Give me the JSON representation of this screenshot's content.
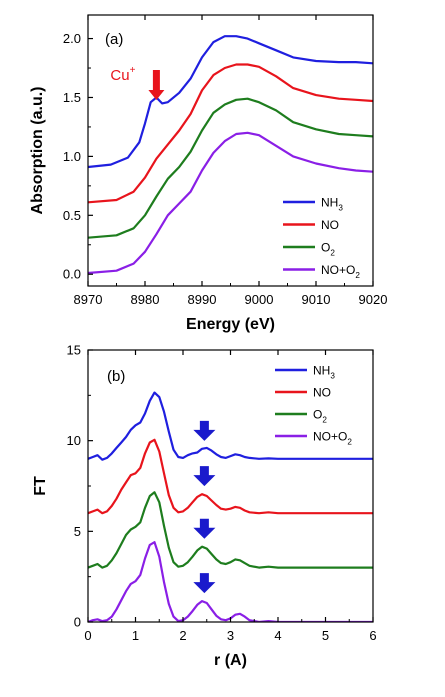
{
  "chart_data": [
    {
      "panel": "(a)",
      "type": "line",
      "xlabel": "Energy (eV)",
      "ylabel": "Absorption (a.u.)",
      "xlim": [
        8970,
        9020
      ],
      "ylim": [
        -0.1,
        2.2
      ],
      "xticks": [
        8970,
        8980,
        8990,
        9000,
        9010,
        9020
      ],
      "yticks": [
        0.0,
        0.5,
        1.0,
        1.5,
        2.0
      ],
      "ytick_labels": [
        "0.0",
        "0.5",
        "1.0",
        "1.5",
        "2.0"
      ],
      "legend_position": "bottom-right",
      "annotation": {
        "text": "Cu",
        "sup": "+",
        "x": 8982,
        "color": "#e8141c"
      },
      "series": [
        {
          "name": "NH",
          "sub": "3",
          "color": "#1f1fdf",
          "x": [
            8970,
            8974,
            8977,
            8979,
            8980,
            8981,
            8982,
            8983,
            8984,
            8986,
            8988,
            8990,
            8992,
            8994,
            8996,
            8998,
            9000,
            9003,
            9006,
            9010,
            9014,
            9017,
            9020
          ],
          "y": [
            0.91,
            0.93,
            0.99,
            1.12,
            1.28,
            1.46,
            1.5,
            1.45,
            1.46,
            1.54,
            1.66,
            1.84,
            1.97,
            2.02,
            2.02,
            2.0,
            1.96,
            1.9,
            1.84,
            1.81,
            1.8,
            1.8,
            1.79
          ]
        },
        {
          "name": "NO",
          "sub": "",
          "color": "#e8141c",
          "x": [
            8970,
            8975,
            8978,
            8980,
            8982,
            8984,
            8986,
            8988,
            8990,
            8992,
            8994,
            8996,
            8998,
            9000,
            9003,
            9006,
            9010,
            9014,
            9017,
            9020
          ],
          "y": [
            0.61,
            0.63,
            0.7,
            0.82,
            0.98,
            1.1,
            1.22,
            1.36,
            1.56,
            1.69,
            1.75,
            1.78,
            1.78,
            1.76,
            1.68,
            1.58,
            1.52,
            1.49,
            1.48,
            1.47
          ]
        },
        {
          "name": "O",
          "sub": "2",
          "color": "#1e7d1e",
          "x": [
            8970,
            8975,
            8978,
            8980,
            8982,
            8984,
            8986,
            8988,
            8990,
            8992,
            8994,
            8996,
            8998,
            9000,
            9003,
            9006,
            9010,
            9014,
            9017,
            9020
          ],
          "y": [
            0.31,
            0.33,
            0.39,
            0.5,
            0.66,
            0.81,
            0.91,
            1.04,
            1.22,
            1.37,
            1.44,
            1.48,
            1.49,
            1.46,
            1.39,
            1.29,
            1.23,
            1.19,
            1.18,
            1.17
          ]
        },
        {
          "name": "NO+O",
          "sub": "2",
          "color": "#8a1fe6",
          "x": [
            8970,
            8975,
            8978,
            8980,
            8982,
            8984,
            8986,
            8988,
            8990,
            8992,
            8994,
            8996,
            8998,
            9000,
            9003,
            9006,
            9010,
            9014,
            9017,
            9020
          ],
          "y": [
            0.01,
            0.03,
            0.09,
            0.19,
            0.34,
            0.5,
            0.6,
            0.7,
            0.88,
            1.03,
            1.13,
            1.19,
            1.2,
            1.18,
            1.09,
            1.0,
            0.94,
            0.9,
            0.88,
            0.87
          ]
        }
      ]
    },
    {
      "panel": "(b)",
      "type": "line",
      "xlabel": "r (A)",
      "ylabel": "FT",
      "xlim": [
        0,
        6
      ],
      "ylim": [
        0,
        15
      ],
      "xticks": [
        0,
        1,
        2,
        3,
        4,
        5,
        6
      ],
      "yticks": [
        0,
        5,
        10,
        15
      ],
      "legend_position": "top-right",
      "arrows_at_x": 2.45,
      "arrow_color": "#1a1acc",
      "series": [
        {
          "name": "NH",
          "sub": "3",
          "color": "#1f1fdf",
          "x": [
            0,
            0.1,
            0.2,
            0.3,
            0.4,
            0.5,
            0.6,
            0.7,
            0.8,
            0.9,
            1.0,
            1.1,
            1.2,
            1.3,
            1.4,
            1.5,
            1.6,
            1.7,
            1.8,
            1.9,
            2.0,
            2.1,
            2.2,
            2.3,
            2.4,
            2.5,
            2.6,
            2.7,
            2.8,
            2.9,
            3.0,
            3.1,
            3.2,
            3.3,
            3.4,
            3.6,
            3.8,
            4.0,
            4.5,
            5.0,
            5.5,
            6.0
          ],
          "y": [
            9.0,
            9.1,
            9.2,
            8.95,
            9.05,
            9.3,
            9.6,
            9.9,
            10.2,
            10.6,
            10.85,
            11.0,
            11.5,
            12.2,
            12.65,
            12.4,
            11.6,
            10.5,
            9.5,
            9.1,
            9.05,
            9.2,
            9.3,
            9.35,
            9.55,
            9.6,
            9.45,
            9.25,
            9.1,
            9.05,
            9.15,
            9.25,
            9.2,
            9.1,
            9.05,
            9.0,
            9.02,
            9.0,
            9.0,
            9.0,
            9.0,
            9.0
          ]
        },
        {
          "name": "NO",
          "sub": "",
          "color": "#e8141c",
          "x": [
            0,
            0.1,
            0.2,
            0.3,
            0.4,
            0.5,
            0.6,
            0.7,
            0.8,
            0.9,
            1.0,
            1.1,
            1.2,
            1.3,
            1.4,
            1.5,
            1.6,
            1.7,
            1.8,
            1.9,
            2.0,
            2.1,
            2.2,
            2.3,
            2.4,
            2.5,
            2.6,
            2.7,
            2.8,
            2.9,
            3.0,
            3.1,
            3.2,
            3.3,
            3.4,
            3.6,
            3.8,
            4.0,
            4.5,
            5.0,
            5.5,
            6.0
          ],
          "y": [
            6.0,
            6.1,
            6.2,
            6.0,
            6.1,
            6.4,
            6.8,
            7.3,
            7.7,
            8.1,
            8.2,
            8.5,
            9.3,
            9.9,
            10.05,
            9.4,
            8.2,
            7.0,
            6.3,
            6.05,
            6.1,
            6.3,
            6.6,
            6.9,
            7.05,
            6.95,
            6.7,
            6.45,
            6.25,
            6.2,
            6.25,
            6.35,
            6.3,
            6.15,
            6.05,
            6.0,
            6.05,
            6.0,
            6.0,
            6.0,
            6.0,
            6.0
          ]
        },
        {
          "name": "O",
          "sub": "2",
          "color": "#1e7d1e",
          "x": [
            0,
            0.1,
            0.2,
            0.3,
            0.4,
            0.5,
            0.6,
            0.7,
            0.8,
            0.9,
            1.0,
            1.1,
            1.2,
            1.3,
            1.4,
            1.5,
            1.6,
            1.7,
            1.8,
            1.9,
            2.0,
            2.1,
            2.2,
            2.3,
            2.4,
            2.5,
            2.6,
            2.7,
            2.8,
            2.9,
            3.0,
            3.1,
            3.2,
            3.3,
            3.4,
            3.6,
            3.8,
            4.0,
            4.5,
            5.0,
            5.5,
            6.0
          ],
          "y": [
            3.0,
            3.1,
            3.2,
            3.0,
            3.1,
            3.4,
            3.8,
            4.3,
            4.8,
            5.1,
            5.25,
            5.5,
            6.3,
            6.95,
            7.15,
            6.6,
            5.3,
            4.1,
            3.3,
            3.05,
            3.1,
            3.3,
            3.6,
            3.95,
            4.15,
            4.05,
            3.75,
            3.45,
            3.25,
            3.2,
            3.3,
            3.45,
            3.4,
            3.25,
            3.1,
            3.0,
            3.05,
            3.0,
            3.0,
            3.0,
            3.0,
            3.0
          ]
        },
        {
          "name": "NO+O",
          "sub": "2",
          "color": "#8a1fe6",
          "x": [
            0,
            0.1,
            0.2,
            0.3,
            0.4,
            0.5,
            0.6,
            0.7,
            0.8,
            0.9,
            1.0,
            1.1,
            1.2,
            1.3,
            1.4,
            1.5,
            1.6,
            1.7,
            1.8,
            1.9,
            2.0,
            2.1,
            2.2,
            2.3,
            2.4,
            2.5,
            2.6,
            2.7,
            2.8,
            2.9,
            3.0,
            3.1,
            3.2,
            3.3,
            3.4,
            3.6,
            3.8,
            4.0,
            4.5,
            5.0,
            5.5,
            6.0
          ],
          "y": [
            0.0,
            0.1,
            0.15,
            0.05,
            0.1,
            0.3,
            0.7,
            1.2,
            1.7,
            2.1,
            2.25,
            2.6,
            3.5,
            4.25,
            4.4,
            3.6,
            2.2,
            1.0,
            0.3,
            0.05,
            0.1,
            0.3,
            0.6,
            0.95,
            1.15,
            1.05,
            0.7,
            0.35,
            0.15,
            0.1,
            0.2,
            0.4,
            0.45,
            0.3,
            0.1,
            0.0,
            0.05,
            0.0,
            0.0,
            0.0,
            0.0,
            0.0
          ]
        }
      ]
    }
  ]
}
